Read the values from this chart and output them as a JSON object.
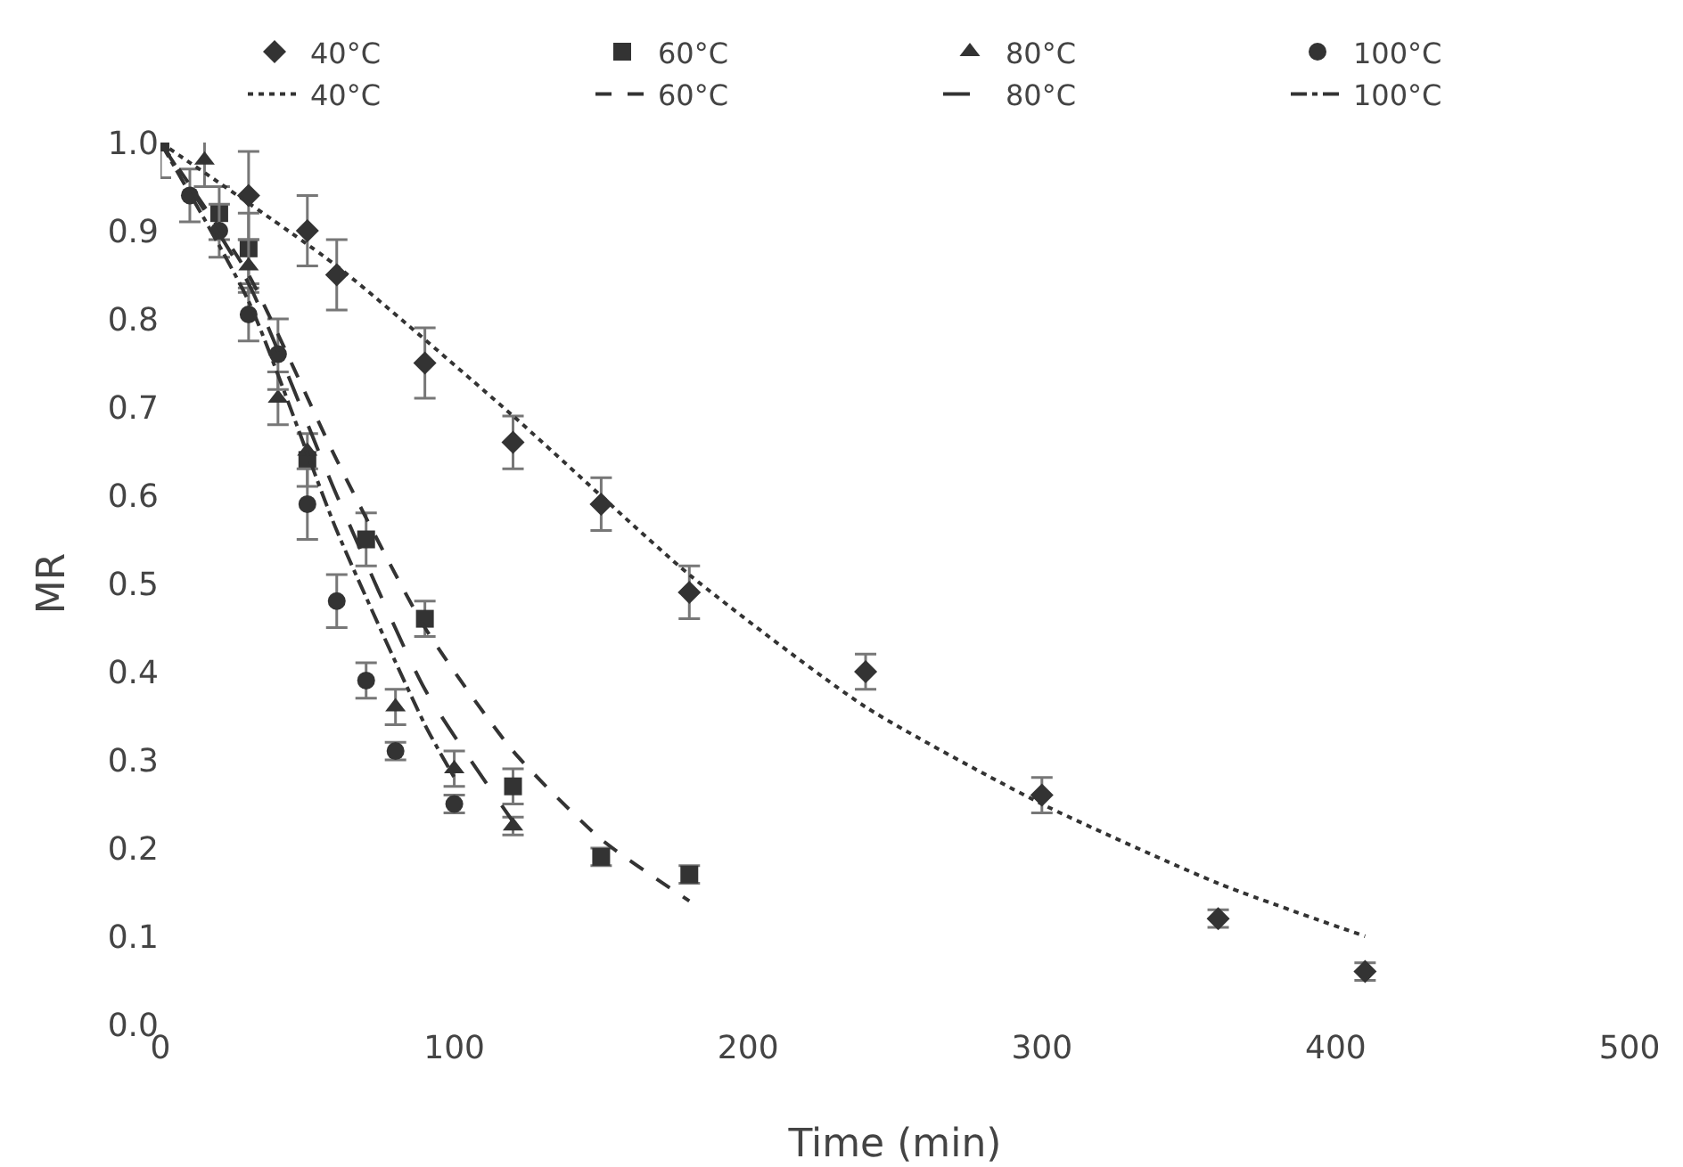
{
  "chart_data": {
    "type": "scatter",
    "xlabel": "Time (min)",
    "ylabel": "MR",
    "xlim": [
      0,
      500
    ],
    "xticks": [
      0,
      100,
      200,
      300,
      400,
      500
    ],
    "ylim": [
      0,
      1.0
    ],
    "yticks": [
      {
        "value": 0,
        "label": "0.0"
      },
      {
        "value": 0.1,
        "label": "0.1"
      },
      {
        "value": 0.2,
        "label": "0.2"
      },
      {
        "value": 0.3,
        "label": "0.3"
      },
      {
        "value": 0.4,
        "label": "0.4"
      },
      {
        "value": 0.5,
        "label": "0.5"
      },
      {
        "value": 0.6,
        "label": "0.6"
      },
      {
        "value": 0.7,
        "label": "0.7"
      },
      {
        "value": 0.8,
        "label": "0.8"
      },
      {
        "value": 0.9,
        "label": "0.9"
      },
      {
        "value": 1,
        "label": "1.0"
      }
    ],
    "grid": false,
    "legend": "top right",
    "series": [
      {
        "name": "40°C",
        "marker": "diamond",
        "color": "#333333",
        "x": [
          30,
          50,
          60,
          90,
          120,
          150,
          180,
          240,
          300,
          360,
          410
        ],
        "values": [
          0.94,
          0.9,
          0.85,
          0.75,
          0.66,
          0.59,
          0.49,
          0.4,
          0.26,
          0.12,
          0.06
        ],
        "errors": [
          0.05,
          0.04,
          0.04,
          0.04,
          0.03,
          0.03,
          0.03,
          0.02,
          0.02,
          0.01,
          0.01
        ]
      },
      {
        "name": "60°C",
        "marker": "square",
        "color": "#333333",
        "x": [
          0,
          20,
          30,
          50,
          70,
          90,
          120,
          150,
          180
        ],
        "values": [
          1.0,
          0.92,
          0.88,
          0.64,
          0.55,
          0.46,
          0.27,
          0.19,
          0.17
        ],
        "errors": [
          0.04,
          0.03,
          0.04,
          0.03,
          0.03,
          0.02,
          0.02,
          0.01,
          0.01
        ]
      },
      {
        "name": "80°C",
        "marker": "triangle",
        "color": "#333333",
        "x": [
          15,
          30,
          40,
          50,
          80,
          100,
          120
        ],
        "values": [
          0.98,
          0.86,
          0.71,
          0.65,
          0.36,
          0.29,
          0.225
        ],
        "errors": [
          0.03,
          0.03,
          0.03,
          null,
          0.02,
          0.02,
          0.01
        ]
      },
      {
        "name": "100°C",
        "marker": "circle",
        "color": "#333333",
        "x": [
          10,
          20,
          30,
          40,
          50,
          60,
          70,
          80,
          100
        ],
        "values": [
          0.94,
          0.9,
          0.805,
          0.76,
          0.59,
          0.48,
          0.39,
          0.31,
          0.25
        ],
        "errors": [
          0.03,
          0.03,
          0.03,
          0.04,
          0.04,
          0.03,
          0.02,
          0.01,
          0.01
        ]
      },
      {
        "name": "40°C",
        "type": "line",
        "marker": "none",
        "line_style": "dotted",
        "color": "#333333",
        "x": [
          0,
          60,
          120,
          180,
          240,
          300,
          360,
          410
        ],
        "values": [
          1.0,
          0.86,
          0.69,
          0.51,
          0.36,
          0.25,
          0.16,
          0.1
        ]
      },
      {
        "name": "60°C",
        "type": "line",
        "marker": "none",
        "line_style": "dashed",
        "color": "#333333",
        "x": [
          0,
          30,
          60,
          90,
          120,
          150,
          180
        ],
        "values": [
          1.0,
          0.85,
          0.64,
          0.45,
          0.31,
          0.21,
          0.14
        ]
      },
      {
        "name": "80°C",
        "type": "line",
        "marker": "none",
        "line_style": "longdash",
        "color": "#333333",
        "x": [
          0,
          30,
          60,
          90,
          120
        ],
        "values": [
          1.0,
          0.84,
          0.6,
          0.38,
          0.23
        ]
      },
      {
        "name": "100°C",
        "type": "line",
        "marker": "none",
        "line_style": "dashdot",
        "color": "#333333",
        "x": [
          0,
          30,
          60,
          90,
          100
        ],
        "values": [
          1.0,
          0.82,
          0.56,
          0.34,
          0.28
        ]
      }
    ]
  }
}
